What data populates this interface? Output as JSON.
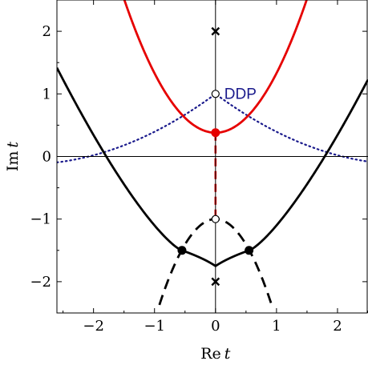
{
  "figure": {
    "xlabel": {
      "prefix": "Re",
      "var": "t"
    },
    "ylabel": {
      "prefix": "Im",
      "var": "t"
    },
    "xlim": [
      -2.6,
      2.5
    ],
    "ylim": [
      -2.5,
      2.5
    ],
    "xticks": [
      -2,
      -1,
      0,
      1,
      2
    ],
    "yticks": [
      -2,
      -1,
      0,
      1,
      2
    ],
    "xtick_labels": [
      "−2",
      "−1",
      "0",
      "1",
      "2"
    ],
    "ytick_labels": [
      "−2",
      "−1",
      "0",
      "1",
      "2"
    ]
  },
  "annotations": {
    "ddp_label": "DDP"
  },
  "colors": {
    "red_curve": "#e60000",
    "black_curve": "#000000",
    "blue_dotted": "#1a1a8c",
    "ddp_text": "#1a1a8c"
  },
  "points": {
    "poles": [
      [
        0,
        2
      ],
      [
        0,
        -2
      ]
    ],
    "open_circles": [
      [
        0,
        1
      ],
      [
        0,
        -1
      ]
    ],
    "red_dot": [
      0,
      0.38
    ],
    "black_dots": [
      [
        -0.55,
        -1.5
      ],
      [
        0.55,
        -1.5
      ]
    ]
  }
}
